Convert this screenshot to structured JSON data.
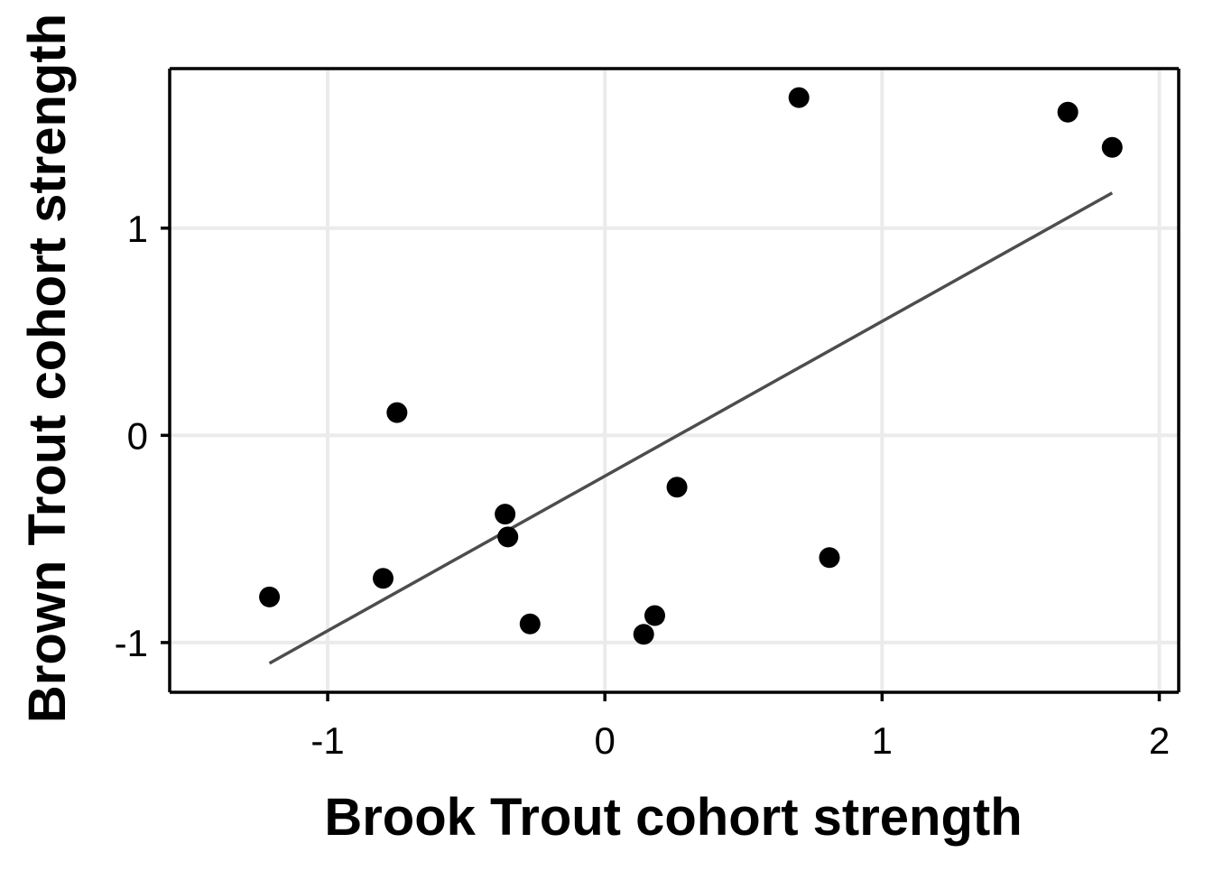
{
  "chart_data": {
    "type": "scatter",
    "title": "",
    "xlabel": "Brook Trout cohort strength",
    "ylabel": "Brown Trout cohort strength",
    "xlim": [
      -1.57,
      2.07
    ],
    "ylim": [
      -1.24,
      1.77
    ],
    "x_ticks": [
      -1,
      0,
      1,
      2
    ],
    "x_tick_labels": [
      "-1",
      "0",
      "1",
      "2"
    ],
    "y_ticks": [
      -1,
      0,
      1
    ],
    "y_tick_labels": [
      "-1",
      "0",
      "1"
    ],
    "grid": true,
    "series": [
      {
        "points": [
          {
            "x": -1.21,
            "y": -0.78
          },
          {
            "x": -0.8,
            "y": -0.69
          },
          {
            "x": -0.75,
            "y": 0.11
          },
          {
            "x": -0.36,
            "y": -0.38
          },
          {
            "x": -0.35,
            "y": -0.49
          },
          {
            "x": -0.27,
            "y": -0.91
          },
          {
            "x": 0.14,
            "y": -0.96
          },
          {
            "x": 0.18,
            "y": -0.87
          },
          {
            "x": 0.26,
            "y": -0.25
          },
          {
            "x": 0.7,
            "y": 1.63
          },
          {
            "x": 0.81,
            "y": -0.59
          },
          {
            "x": 1.67,
            "y": 1.56
          },
          {
            "x": 1.83,
            "y": 1.39
          }
        ]
      }
    ],
    "fit_line": {
      "x": [
        -1.21,
        1.83
      ],
      "y": [
        -1.1,
        1.17
      ]
    },
    "colors": {
      "points": "#000000",
      "fit_line": "#4d4d4d",
      "grid": "#ebebeb",
      "axis": "#000000"
    }
  }
}
